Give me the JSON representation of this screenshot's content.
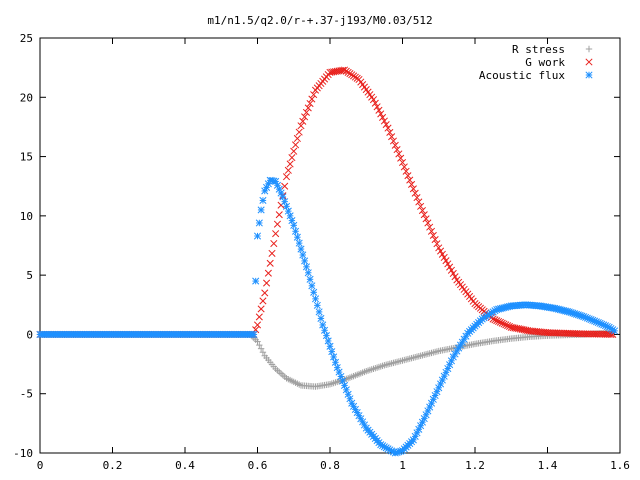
{
  "chart_data": {
    "type": "scatter",
    "title": "m1/n1.5/q2.0/r-+.37-j193/M0.03/512",
    "xlabel": "",
    "ylabel": "",
    "xlim": [
      0,
      1.6
    ],
    "ylim": [
      -10,
      25
    ],
    "x_ticks": [
      "0",
      "0.2",
      "0.4",
      "0.6",
      "0.8",
      "1",
      "1.2",
      "1.4",
      "1.6"
    ],
    "y_ticks": [
      "-10",
      "-5",
      "0",
      "5",
      "10",
      "15",
      "20",
      "25"
    ],
    "grid": false,
    "legend_position": "top-right",
    "series": [
      {
        "name": "R stress",
        "marker": "plus",
        "color": "#a0a0a0",
        "x": [
          0.0,
          0.58,
          0.6,
          0.62,
          0.65,
          0.68,
          0.72,
          0.76,
          0.8,
          0.85,
          0.9,
          0.95,
          1.0,
          1.05,
          1.1,
          1.15,
          1.2,
          1.25,
          1.3,
          1.35,
          1.4,
          1.45,
          1.5,
          1.55,
          1.58
        ],
        "y": [
          0.0,
          0.0,
          -0.6,
          -1.8,
          -2.9,
          -3.7,
          -4.3,
          -4.4,
          -4.2,
          -3.7,
          -3.1,
          -2.6,
          -2.2,
          -1.8,
          -1.4,
          -1.1,
          -0.8,
          -0.55,
          -0.35,
          -0.2,
          -0.1,
          -0.05,
          0.0,
          0.1,
          0.2
        ]
      },
      {
        "name": "G work",
        "marker": "x",
        "color": "#e8201c",
        "x": [
          0.0,
          0.59,
          0.6,
          0.62,
          0.65,
          0.68,
          0.72,
          0.76,
          0.8,
          0.84,
          0.88,
          0.92,
          0.96,
          1.0,
          1.05,
          1.1,
          1.15,
          1.2,
          1.25,
          1.3,
          1.35,
          1.4,
          1.45,
          1.5,
          1.55,
          1.58
        ],
        "y": [
          0.0,
          0.0,
          0.8,
          3.5,
          8.5,
          13.3,
          17.6,
          20.6,
          22.1,
          22.3,
          21.5,
          19.8,
          17.4,
          14.5,
          10.8,
          7.3,
          4.6,
          2.6,
          1.3,
          0.6,
          0.3,
          0.15,
          0.1,
          0.05,
          0.02,
          0.0
        ]
      },
      {
        "name": "Acoustic flux",
        "marker": "star",
        "color": "#1e90ff",
        "x": [
          0.0,
          0.59,
          0.595,
          0.6,
          0.61,
          0.62,
          0.635,
          0.65,
          0.67,
          0.7,
          0.74,
          0.78,
          0.82,
          0.86,
          0.9,
          0.94,
          0.98,
          1.0,
          1.03,
          1.06,
          1.1,
          1.14,
          1.18,
          1.22,
          1.26,
          1.3,
          1.34,
          1.38,
          1.42,
          1.46,
          1.5,
          1.54,
          1.57,
          1.585
        ],
        "y": [
          0.0,
          0.0,
          4.5,
          8.3,
          10.5,
          12.1,
          13.0,
          12.9,
          11.6,
          9.2,
          5.2,
          0.8,
          -2.8,
          -5.8,
          -7.9,
          -9.3,
          -10.0,
          -9.8,
          -8.9,
          -7.1,
          -4.5,
          -1.9,
          0.1,
          1.3,
          2.1,
          2.4,
          2.5,
          2.4,
          2.2,
          1.9,
          1.5,
          1.0,
          0.6,
          0.3
        ]
      }
    ]
  }
}
